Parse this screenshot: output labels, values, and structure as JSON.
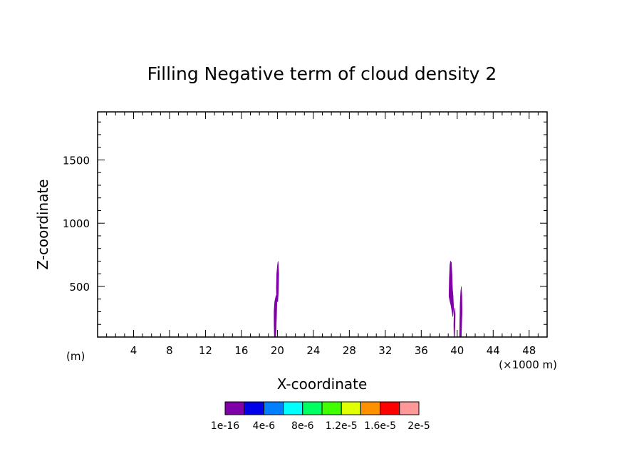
{
  "chart_data": {
    "type": "contour",
    "title": "Filling Negative term of cloud density 2",
    "xlabel": "X-coordinate",
    "ylabel": "Z-coordinate",
    "x_unit_left": "(m)",
    "x_unit_right": "(×1000 m)",
    "xlim": [
      0,
      50
    ],
    "ylim": [
      100,
      1880
    ],
    "x_ticks": [
      4,
      8,
      12,
      16,
      20,
      24,
      28,
      32,
      36,
      40,
      44,
      48
    ],
    "x_tick_labels": [
      "4",
      "8",
      "12",
      "16",
      "20",
      "24",
      "28",
      "32",
      "36",
      "40",
      "44",
      "48"
    ],
    "y_ticks": [
      500,
      1000,
      1500
    ],
    "y_tick_labels": [
      "500",
      "1000",
      "1500"
    ],
    "colorbar": {
      "labels": [
        "1e-16",
        "4e-6",
        "8e-6",
        "1.2e-5",
        "1.6e-5",
        "2e-5"
      ],
      "colors": [
        "#7f00a8",
        "#0000e8",
        "#0080ff",
        "#00ffff",
        "#00ff60",
        "#40ff00",
        "#e0ff00",
        "#ff9000",
        "#ff0000",
        "#ff9898"
      ]
    },
    "regions": [
      {
        "level": 0,
        "color": "#7f00a8",
        "polygons": [
          [
            [
              19.66,
              100
            ],
            [
              19.63,
              200
            ],
            [
              19.62,
              300
            ],
            [
              19.7,
              380
            ],
            [
              19.85,
              430
            ],
            [
              19.95,
              390
            ],
            [
              19.9,
              250
            ],
            [
              19.85,
              150
            ],
            [
              19.8,
              100
            ]
          ],
          [
            [
              19.88,
              490
            ],
            [
              19.92,
              600
            ],
            [
              20.02,
              680
            ],
            [
              20.08,
              700
            ],
            [
              20.15,
              600
            ],
            [
              20.12,
              470
            ],
            [
              20.05,
              380
            ],
            [
              19.95,
              380
            ],
            [
              19.9,
              430
            ]
          ],
          [
            [
              39.08,
              420
            ],
            [
              39.12,
              560
            ],
            [
              39.18,
              670
            ],
            [
              39.25,
              700
            ],
            [
              39.35,
              690
            ],
            [
              39.42,
              600
            ],
            [
              39.48,
              480
            ],
            [
              39.55,
              420
            ],
            [
              39.6,
              330
            ],
            [
              39.52,
              260
            ],
            [
              39.42,
              300
            ],
            [
              39.3,
              350
            ],
            [
              39.2,
              380
            ]
          ],
          [
            [
              39.62,
              200
            ],
            [
              39.66,
              300
            ],
            [
              39.72,
              330
            ],
            [
              39.78,
              280
            ],
            [
              39.75,
              180
            ],
            [
              39.7,
              100
            ],
            [
              39.64,
              100
            ]
          ],
          [
            [
              40.25,
              100
            ],
            [
              40.28,
              200
            ],
            [
              40.32,
              350
            ],
            [
              40.38,
              450
            ],
            [
              40.45,
              500
            ],
            [
              40.52,
              420
            ],
            [
              40.55,
              300
            ],
            [
              40.5,
              200
            ],
            [
              40.46,
              100
            ]
          ]
        ]
      }
    ]
  }
}
